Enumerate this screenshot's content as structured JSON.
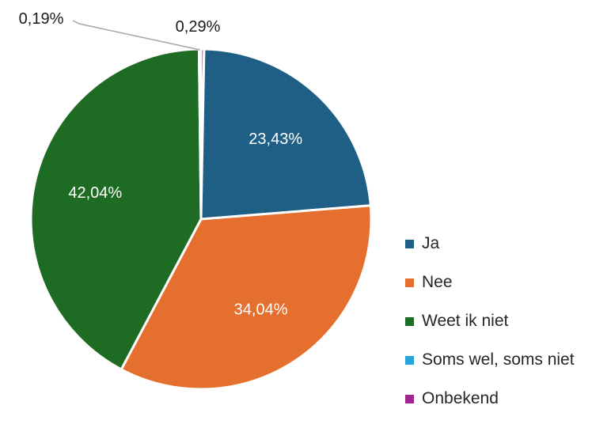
{
  "chart_data": {
    "type": "pie",
    "title": "",
    "slices": [
      {
        "label": "Ja",
        "value": 23.43,
        "display": "23,43%",
        "color": "#1f5f86"
      },
      {
        "label": "Nee",
        "value": 34.04,
        "display": "34,04%",
        "color": "#e56f2e"
      },
      {
        "label": "Weet ik niet",
        "value": 42.04,
        "display": "42,04%",
        "color": "#1e6b24"
      },
      {
        "label": "Soms wel, soms niet",
        "value": 0.19,
        "display": "0,19%",
        "color": "#27a4d8"
      },
      {
        "label": "Onbekend",
        "value": 0.29,
        "display": "0,29%",
        "color": "#a2258f"
      }
    ],
    "legend_position": "right-bottom"
  }
}
